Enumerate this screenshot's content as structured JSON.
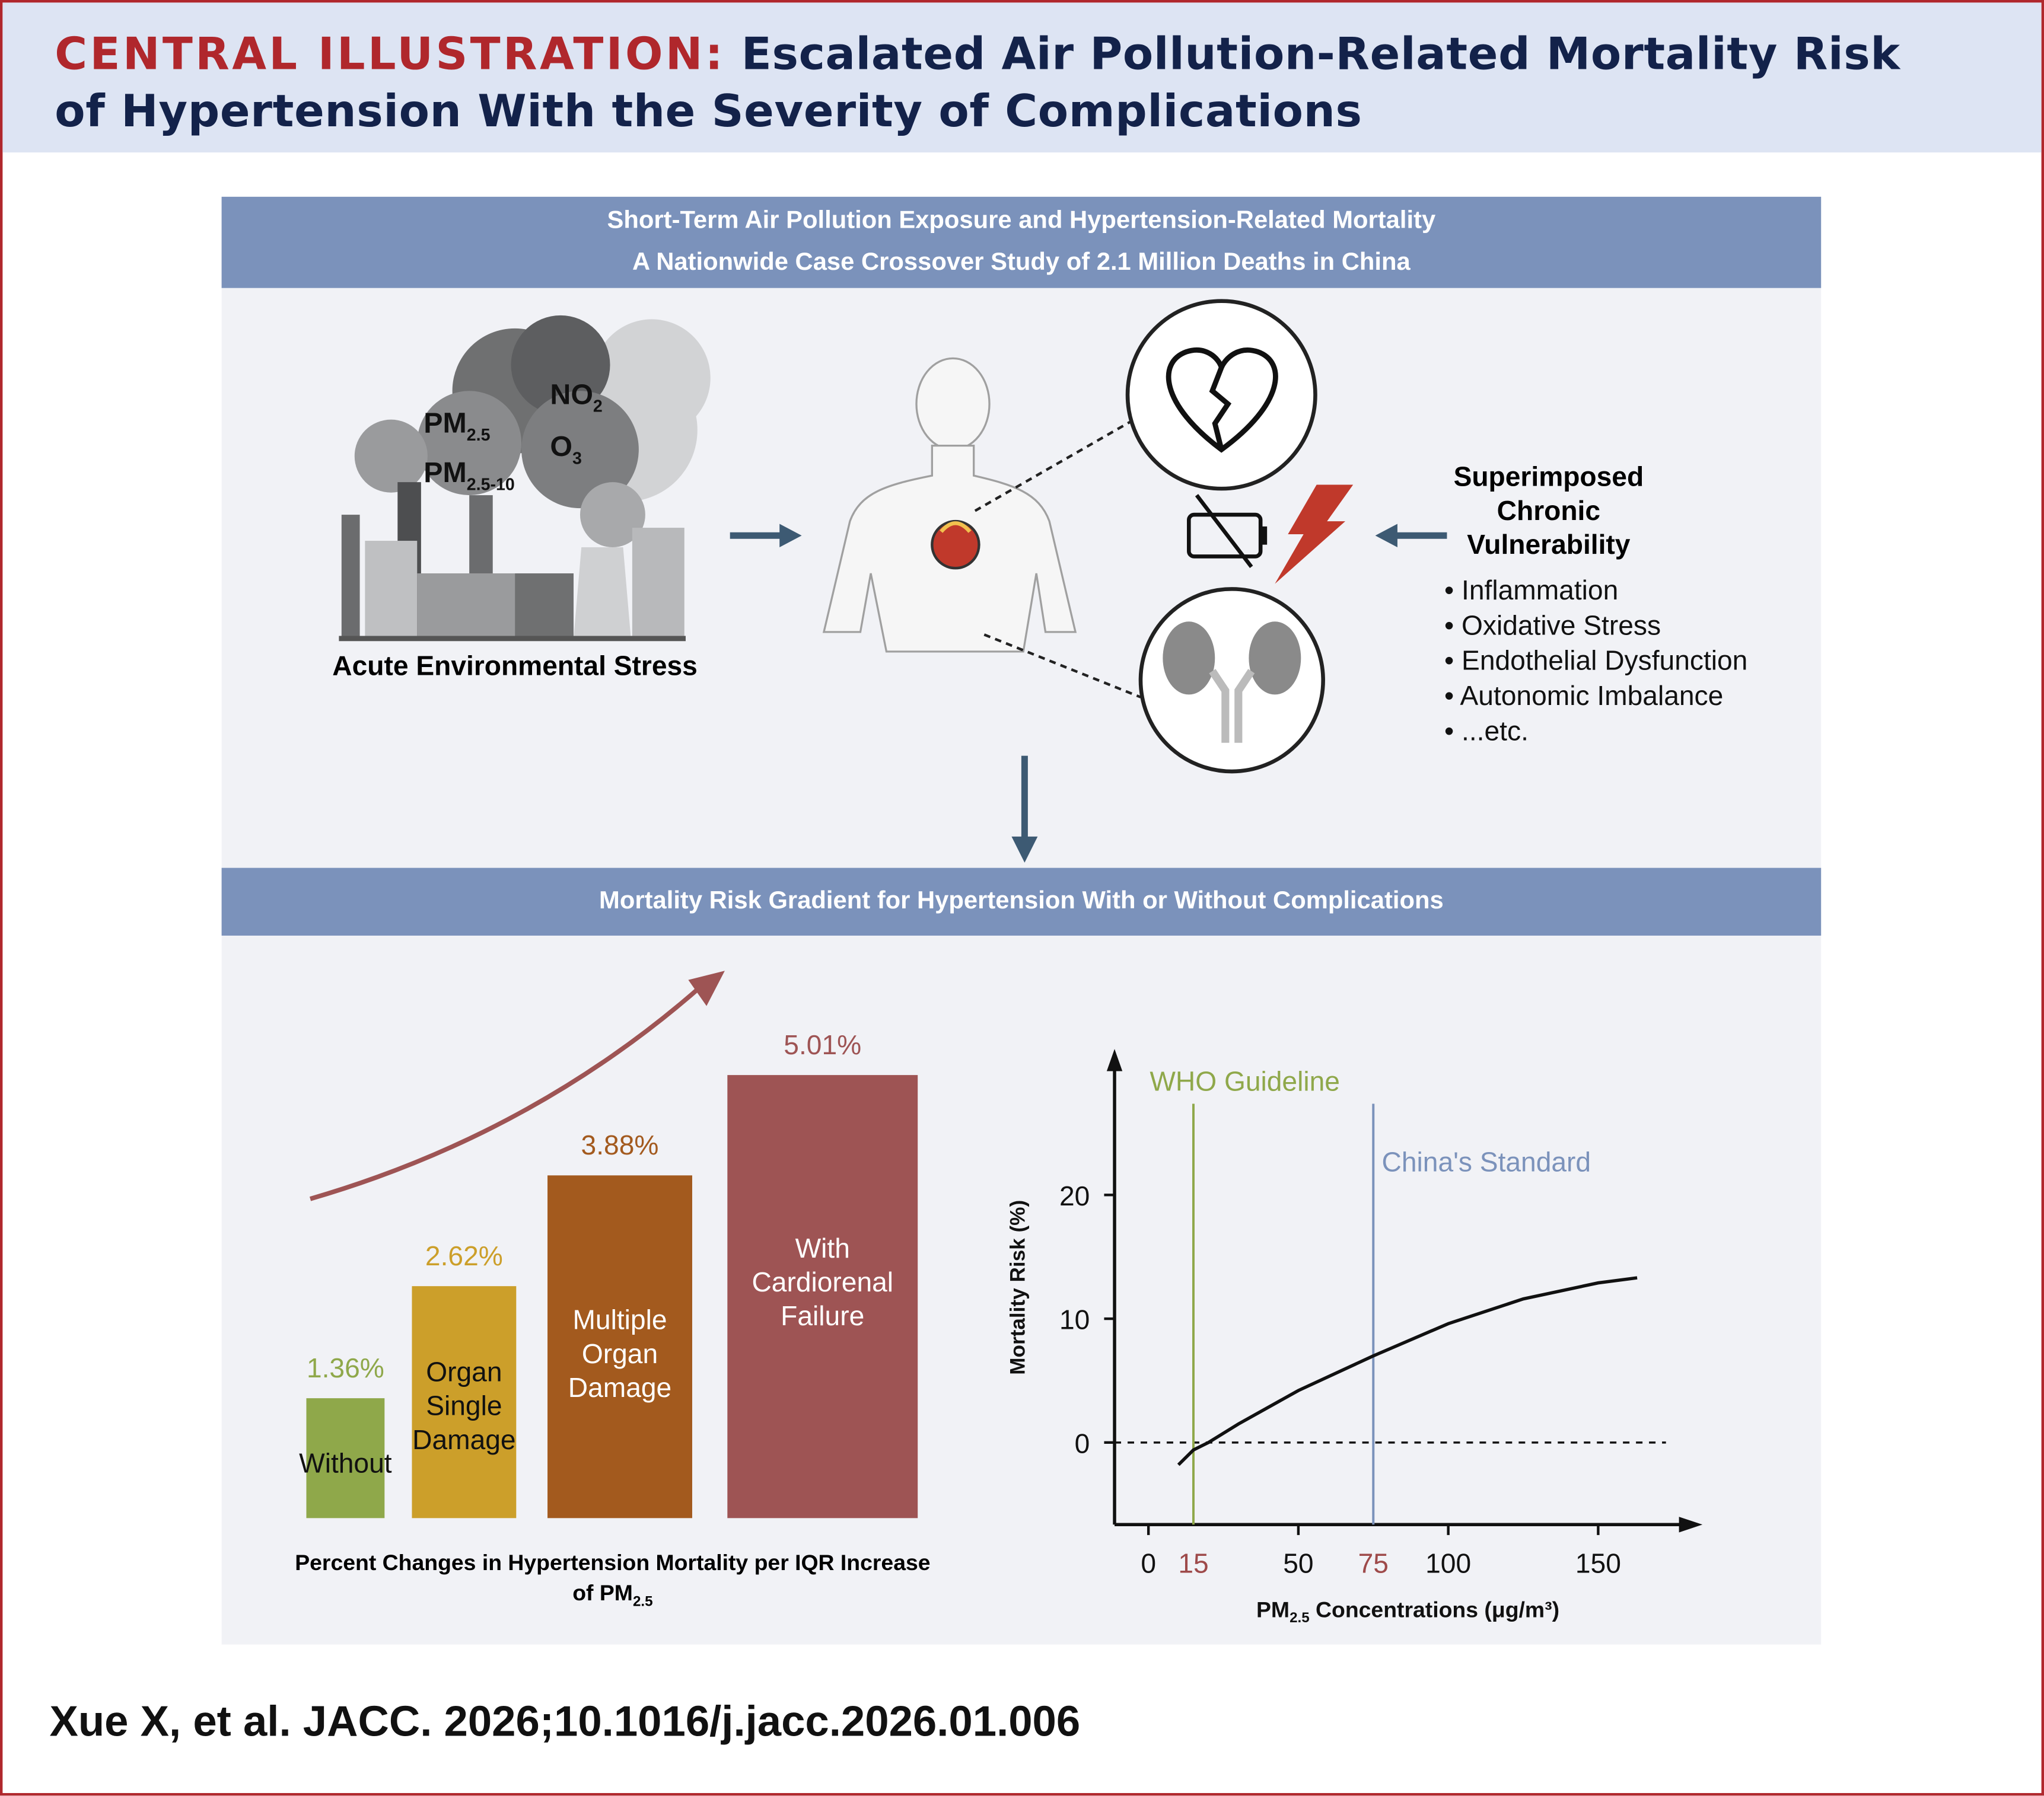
{
  "header": {
    "label": "CENTRAL ILLUSTRATION:",
    "title_line1": "Escalated Air Pollution-Related Mortality Risk",
    "title_line2": "of Hypertension With the Severity of Complications"
  },
  "top_panel": {
    "band_line1": "Short-Term Air Pollution Exposure and Hypertension-Related Mortality",
    "band_line2": "A Nationwide Case Crossover Study of 2.1 Million Deaths in China",
    "pollutants": {
      "pm25": "PM",
      "pm25_sub": "2.5",
      "pm10": "PM",
      "pm10_sub": "2.5-10",
      "no2": "NO",
      "no2_sub": "2",
      "o3": "O",
      "o3_sub": "3"
    },
    "factory_caption": "Acute Environmental Stress",
    "vulnerability_title": [
      "Superimposed",
      "Chronic",
      "Vulnerability"
    ],
    "vulnerability_items": [
      "Inflammation",
      "Oxidative Stress",
      "Endothelial Dysfunction",
      "Autonomic Imbalance",
      "...etc."
    ],
    "icons": [
      "factory-icon",
      "smoke-cloud-icon",
      "human-body-icon",
      "heart-icon",
      "broken-heart-icon",
      "kidney-icon",
      "low-battery-icon",
      "lightning-icon",
      "arrow-right-icon",
      "arrow-left-icon",
      "arrow-down-icon"
    ]
  },
  "bottom_panel": {
    "band": "Mortality Risk Gradient for Hypertension With or Without Complications"
  },
  "chart_data": [
    {
      "type": "bar",
      "title": "",
      "xlabel": "Percent Changes in Hypertension Mortality per IQR Increase of PM",
      "xlabel_sub": "2.5",
      "categories": [
        [
          "Without"
        ],
        [
          "Organ",
          "Single",
          "Damage"
        ],
        [
          "Multiple",
          "Organ",
          "Damage"
        ],
        [
          "With",
          "Cardiorenal",
          "Failure"
        ]
      ],
      "values": [
        1.36,
        2.62,
        3.88,
        5.01
      ],
      "value_labels": [
        "1.36%",
        "2.62%",
        "3.88%",
        "5.01%"
      ],
      "colors": [
        "#8fa84a",
        "#cc9f2a",
        "#a35a1e",
        "#9e5454"
      ],
      "trend_arrow": "increasing"
    },
    {
      "type": "line",
      "xlabel": "PM",
      "xlabel_sub": "2.5",
      "xlabel_rest": " Concentrations (μg/m³)",
      "ylabel": "Mortality Risk (%)",
      "xticks": [
        0,
        15,
        50,
        75,
        100,
        150
      ],
      "xtick_highlight": [
        15,
        75
      ],
      "yticks": [
        0,
        10,
        20
      ],
      "xlim": [
        -12,
        180
      ],
      "ylim": [
        -6.5,
        29
      ],
      "x": [
        10,
        15,
        20,
        30,
        50,
        75,
        100,
        125,
        150,
        163
      ],
      "y": [
        -1.8,
        -0.6,
        0,
        1.5,
        4.2,
        7,
        9.6,
        11.6,
        12.9,
        13.3
      ],
      "reference_lines": [
        {
          "x": 15,
          "label": "WHO Guideline",
          "color": "#8fa84a"
        },
        {
          "x": 75,
          "label": "China's Standard",
          "color": "#7b92bb"
        }
      ],
      "zero_line": "dashed"
    }
  ],
  "citation": "Xue X, et al. JACC. 2026;10.1016/j.jacc.2026.01.006"
}
